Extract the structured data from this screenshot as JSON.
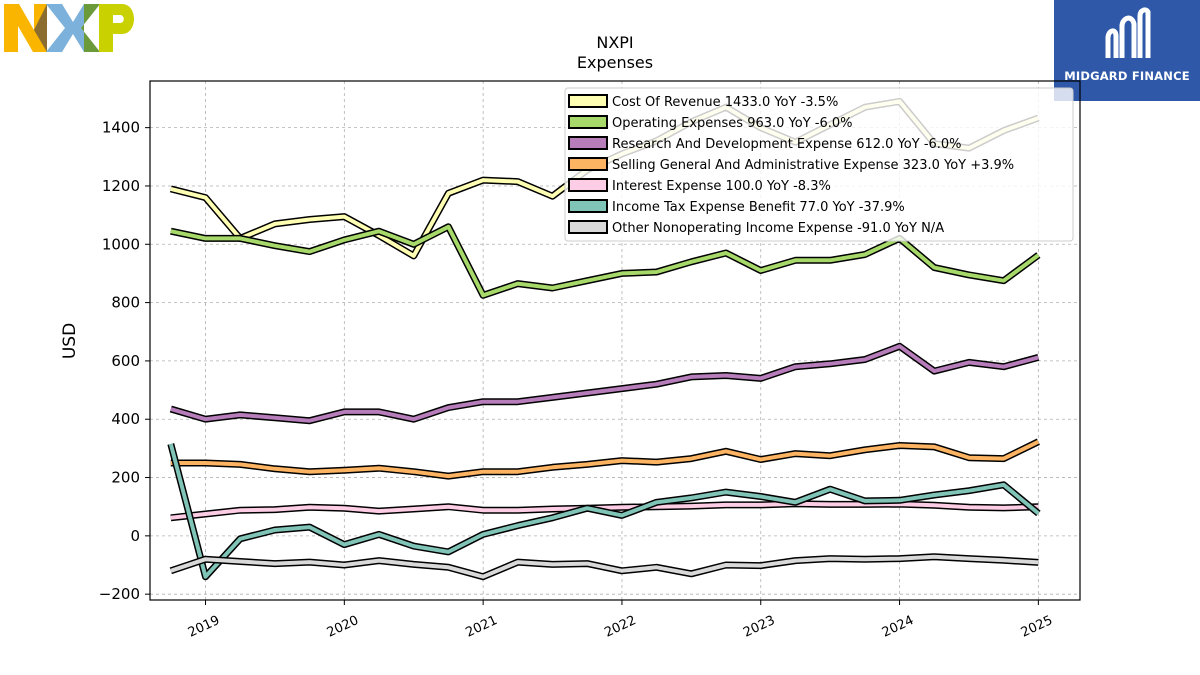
{
  "logo": {
    "name": "nxp-logo",
    "text": "NXP",
    "colors": [
      "#f9b500",
      "#7bb1db",
      "#c9d200"
    ]
  },
  "badge": {
    "text": "MIDGARD FINANCE",
    "background": "#2f58a8"
  },
  "chart_data": {
    "type": "line",
    "title": "NXPI",
    "subtitle": "Expenses",
    "xlabel": "",
    "ylabel": "USD",
    "ylim": [
      -220,
      1560
    ],
    "xlim": [
      2018.6,
      2025.3
    ],
    "grid": true,
    "legend_position": "top-right",
    "x_ticks": [
      "2019",
      "2020",
      "2021",
      "2022",
      "2023",
      "2024",
      "2025"
    ],
    "y_ticks": [
      "−200",
      "0",
      "200",
      "400",
      "600",
      "800",
      "1000",
      "1200",
      "1400"
    ],
    "y_tick_values": [
      -200,
      0,
      200,
      400,
      600,
      800,
      1000,
      1200,
      1400
    ],
    "x": [
      2018.75,
      2019.0,
      2019.25,
      2019.5,
      2019.75,
      2020.0,
      2020.25,
      2020.5,
      2020.75,
      2021.0,
      2021.25,
      2021.5,
      2021.75,
      2022.0,
      2022.25,
      2022.5,
      2022.75,
      2023.0,
      2023.25,
      2023.5,
      2023.75,
      2024.0,
      2024.25,
      2024.5,
      2024.75,
      2025.0
    ],
    "series": [
      {
        "name": "Cost Of Revenue",
        "legend": "Cost Of Revenue  1433.0 YoY -3.5%",
        "color": "#ffffb3",
        "values": [
          1190,
          1160,
          1020,
          1070,
          1085,
          1095,
          1030,
          960,
          1175,
          1220,
          1215,
          1165,
          1255,
          1310,
          1355,
          1420,
          1470,
          1400,
          1350,
          1410,
          1470,
          1490,
          1345,
          1330,
          1390,
          1433
        ]
      },
      {
        "name": "Operating Expenses",
        "legend": "Operating Expenses  963.0 YoY -6.0%",
        "color": "#a6d96a",
        "values": [
          1045,
          1020,
          1020,
          995,
          975,
          1015,
          1045,
          1000,
          1060,
          825,
          865,
          850,
          875,
          900,
          905,
          940,
          970,
          910,
          945,
          945,
          965,
          1020,
          920,
          895,
          875,
          963
        ]
      },
      {
        "name": "Research And Development Expense",
        "legend": "Research And Development Expense  612.0 YoY -6.0%",
        "color": "#b77dbb",
        "values": [
          435,
          400,
          415,
          405,
          395,
          425,
          425,
          400,
          440,
          460,
          460,
          475,
          490,
          505,
          520,
          545,
          550,
          540,
          580,
          590,
          605,
          650,
          565,
          595,
          580,
          612
        ]
      },
      {
        "name": "Selling General And Administrative Expense",
        "legend": "Selling General And Administrative Expense  323.0 YoY +3.9%",
        "color": "#fdb462",
        "values": [
          250,
          250,
          245,
          230,
          220,
          225,
          232,
          220,
          205,
          220,
          220,
          235,
          245,
          258,
          253,
          265,
          290,
          262,
          282,
          275,
          295,
          310,
          305,
          268,
          265,
          323
        ]
      },
      {
        "name": "Interest Expense",
        "legend": "Interest Expense  100.0 YoY -8.3%",
        "color": "#fccde5",
        "values": [
          62,
          75,
          88,
          90,
          98,
          95,
          85,
          92,
          100,
          88,
          88,
          92,
          95,
          98,
          100,
          102,
          106,
          106,
          110,
          108,
          108,
          109,
          105,
          98,
          96,
          100
        ]
      },
      {
        "name": "Income Tax Expense Benefit",
        "legend": "Income Tax Expense Benefit  77.0 YoY -37.9%",
        "color": "#80c4b7",
        "values": [
          315,
          -140,
          -10,
          20,
          30,
          -30,
          5,
          -35,
          -55,
          5,
          35,
          62,
          95,
          70,
          115,
          130,
          150,
          135,
          115,
          160,
          120,
          122,
          140,
          155,
          175,
          77
        ]
      },
      {
        "name": "Other Nonoperating Income Expense",
        "legend": "Other Nonoperating Income Expense  -91.0 YoY N/A",
        "color": "#d9d9d9",
        "values": [
          -120,
          -80,
          -88,
          -95,
          -90,
          -100,
          -85,
          -98,
          -108,
          -140,
          -90,
          -98,
          -95,
          -120,
          -108,
          -130,
          -100,
          -102,
          -85,
          -78,
          -80,
          -78,
          -72,
          -78,
          -84,
          -91
        ]
      }
    ]
  }
}
